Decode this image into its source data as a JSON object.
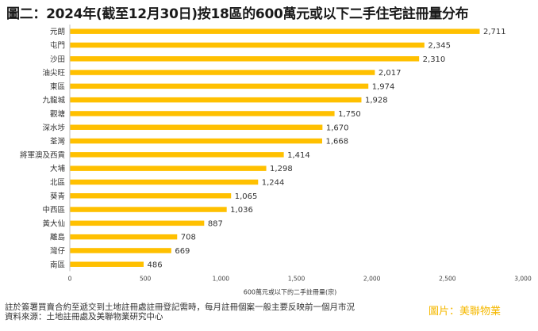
{
  "title": "圖二：2024年(截至12月30日)按18區的600萬元或以下二手住宅註冊量分布",
  "chart_data": {
    "type": "bar",
    "orientation": "horizontal",
    "title": "圖二：2024年(截至12月30日)按18區的600萬元或以下二手住宅註冊量分布",
    "xlabel": "600萬元或以下的二手註冊量(宗)",
    "ylabel": "",
    "categories": [
      "元朗",
      "屯門",
      "沙田",
      "油尖旺",
      "東區",
      "九龍城",
      "觀塘",
      "深水埗",
      "荃灣",
      "將軍澳及西貢",
      "大埔",
      "北區",
      "葵青",
      "中西區",
      "黃大仙",
      "離島",
      "灣仔",
      "南區"
    ],
    "values": [
      2711,
      2345,
      2310,
      2017,
      1974,
      1928,
      1750,
      1670,
      1668,
      1414,
      1298,
      1244,
      1065,
      1036,
      887,
      708,
      669,
      486
    ],
    "value_labels": [
      "2,711",
      "2,345",
      "2,310",
      "2,017",
      "1,974",
      "1,928",
      "1,750",
      "1,670",
      "1,668",
      "1,414",
      "1,298",
      "1,244",
      "1,065",
      "1,036",
      "887",
      "708",
      "669",
      "486"
    ],
    "xlim": [
      0,
      3000
    ],
    "xticks": [
      0,
      500,
      1000,
      1500,
      2000,
      2500,
      3000
    ],
    "xtick_labels": [
      "0",
      "500",
      "1,000",
      "1,500",
      "2,000",
      "2,500",
      "3,000"
    ],
    "bar_color": "#ffc000",
    "grid": false
  },
  "footer": {
    "line1": "註於簽署買賣合約至遞交到土地註冊處註冊登記需時，每月註冊個案一般主要反映前一個月市況",
    "line2": "資料來源：土地註冊處及美聯物業研究中心"
  },
  "credit": "圖片：美聯物業"
}
